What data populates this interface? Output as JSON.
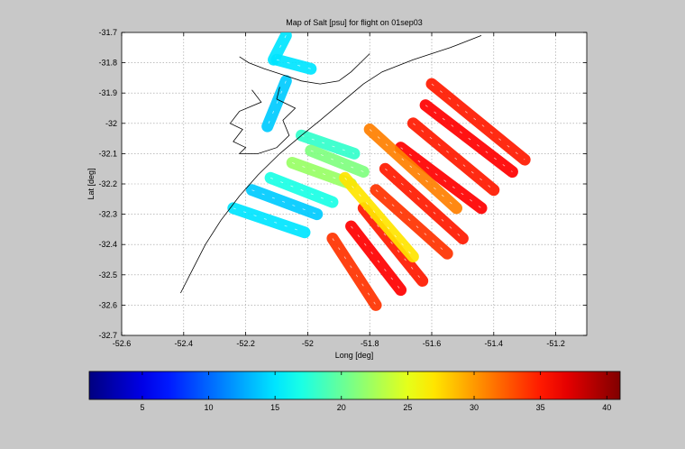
{
  "chart_data": {
    "type": "heatmap",
    "title": "Map of Salt [psu] for flight on 01sep03",
    "xlabel": "Long [deg]",
    "ylabel": "Lat [deg]",
    "xlim": [
      -52.6,
      -51.1
    ],
    "ylim": [
      -32.7,
      -31.7
    ],
    "xticks": [
      -52.6,
      -52.4,
      -52.2,
      -52,
      -51.8,
      -51.6,
      -51.4,
      -51.2
    ],
    "xtick_labels": [
      "-52.6",
      "-52.4",
      "-52.2",
      "-52",
      "-51.8",
      "-51.6",
      "-51.4",
      "-51.2"
    ],
    "yticks": [
      -31.7,
      -31.8,
      -31.9,
      -32,
      -32.1,
      -32.2,
      -32.3,
      -32.4,
      -32.5,
      -32.6,
      -32.7
    ],
    "ytick_labels": [
      "-31.7",
      "-31.8",
      "-31.9",
      "-32",
      "-32.1",
      "-32.2",
      "-32.3",
      "-32.4",
      "-32.5",
      "-32.6",
      "-32.7"
    ],
    "grid": true,
    "colormap": "jet",
    "colorbar": {
      "orientation": "horizontal",
      "location": "bottom",
      "range": [
        1,
        41
      ],
      "ticks": [
        5,
        10,
        15,
        20,
        25,
        30,
        35,
        40
      ],
      "tick_labels": [
        "5",
        "10",
        "15",
        "20",
        "25",
        "30",
        "35",
        "40"
      ]
    },
    "coastline": [
      [
        -52.41,
        -32.56
      ],
      [
        -52.37,
        -32.48
      ],
      [
        -52.33,
        -32.4
      ],
      [
        -52.28,
        -32.32
      ],
      [
        -52.22,
        -32.24
      ],
      [
        -52.16,
        -32.17
      ],
      [
        -52.09,
        -32.1
      ],
      [
        -52.02,
        -32.04
      ],
      [
        -51.96,
        -31.99
      ],
      [
        -51.89,
        -31.93
      ],
      [
        -51.82,
        -31.87
      ],
      [
        -51.76,
        -31.83
      ],
      [
        -51.66,
        -31.79
      ],
      [
        -51.54,
        -31.75
      ],
      [
        -51.44,
        -31.71
      ]
    ],
    "lagoon_outline": [
      [
        -52.22,
        -31.78
      ],
      [
        -52.19,
        -31.8
      ],
      [
        -52.14,
        -31.82
      ],
      [
        -52.08,
        -31.84
      ],
      [
        -52.02,
        -31.86
      ],
      [
        -51.96,
        -31.87
      ],
      [
        -51.9,
        -31.86
      ],
      [
        -51.86,
        -31.83
      ],
      [
        -51.83,
        -31.8
      ],
      [
        -51.8,
        -31.77
      ]
    ],
    "estuary_outline": [
      [
        -52.18,
        -31.89
      ],
      [
        -52.15,
        -31.93
      ],
      [
        -52.22,
        -31.96
      ],
      [
        -52.25,
        -32.0
      ],
      [
        -52.21,
        -32.02
      ],
      [
        -52.24,
        -32.06
      ],
      [
        -52.2,
        -32.08
      ],
      [
        -52.22,
        -32.1
      ],
      [
        -52.16,
        -32.1
      ],
      [
        -52.1,
        -32.08
      ],
      [
        -52.06,
        -32.04
      ],
      [
        -52.08,
        -31.99
      ],
      [
        -52.04,
        -31.95
      ],
      [
        -52.1,
        -31.92
      ],
      [
        -52.09,
        -31.88
      ]
    ],
    "flight_tracks": [
      {
        "start": [
          -52.07,
          -31.71
        ],
        "end": [
          -52.11,
          -31.79
        ],
        "salinity": 15
      },
      {
        "start": [
          -52.1,
          -31.79
        ],
        "end": [
          -51.99,
          -31.82
        ],
        "salinity": 15
      },
      {
        "start": [
          -52.07,
          -31.86
        ],
        "end": [
          -52.13,
          -32.01
        ],
        "salinity": 14
      },
      {
        "start": [
          -52.02,
          -32.04
        ],
        "end": [
          -51.85,
          -32.1
        ],
        "salinity": 18
      },
      {
        "start": [
          -51.99,
          -32.09
        ],
        "end": [
          -51.82,
          -32.16
        ],
        "salinity": 21
      },
      {
        "start": [
          -52.05,
          -32.13
        ],
        "end": [
          -51.86,
          -32.2
        ],
        "salinity": 22
      },
      {
        "start": [
          -52.12,
          -32.18
        ],
        "end": [
          -51.92,
          -32.26
        ],
        "salinity": 17
      },
      {
        "start": [
          -52.18,
          -32.22
        ],
        "end": [
          -51.97,
          -32.3
        ],
        "salinity": 14
      },
      {
        "start": [
          -52.24,
          -32.28
        ],
        "end": [
          -52.01,
          -32.36
        ],
        "salinity": 15
      },
      {
        "start": [
          -51.92,
          -32.38
        ],
        "end": [
          -51.78,
          -32.6
        ],
        "salinity": 34
      },
      {
        "start": [
          -51.86,
          -32.34
        ],
        "end": [
          -51.7,
          -32.55
        ],
        "salinity": 36
      },
      {
        "start": [
          -51.82,
          -32.28
        ],
        "end": [
          -51.63,
          -32.52
        ],
        "salinity": 35
      },
      {
        "start": [
          -51.78,
          -32.22
        ],
        "end": [
          -51.55,
          -32.43
        ],
        "salinity": 34
      },
      {
        "start": [
          -51.75,
          -32.15
        ],
        "end": [
          -51.5,
          -32.38
        ],
        "salinity": 35
      },
      {
        "start": [
          -51.7,
          -32.08
        ],
        "end": [
          -51.44,
          -32.28
        ],
        "salinity": 36
      },
      {
        "start": [
          -51.66,
          -32.0
        ],
        "end": [
          -51.4,
          -32.22
        ],
        "salinity": 35
      },
      {
        "start": [
          -51.62,
          -31.94
        ],
        "end": [
          -51.34,
          -32.16
        ],
        "salinity": 36
      },
      {
        "start": [
          -51.6,
          -31.87
        ],
        "end": [
          -51.3,
          -32.12
        ],
        "salinity": 35
      },
      {
        "start": [
          -51.8,
          -32.02
        ],
        "end": [
          -51.52,
          -32.28
        ],
        "salinity": 31
      },
      {
        "start": [
          -51.88,
          -32.18
        ],
        "end": [
          -51.66,
          -32.44
        ],
        "salinity": 27
      }
    ]
  }
}
